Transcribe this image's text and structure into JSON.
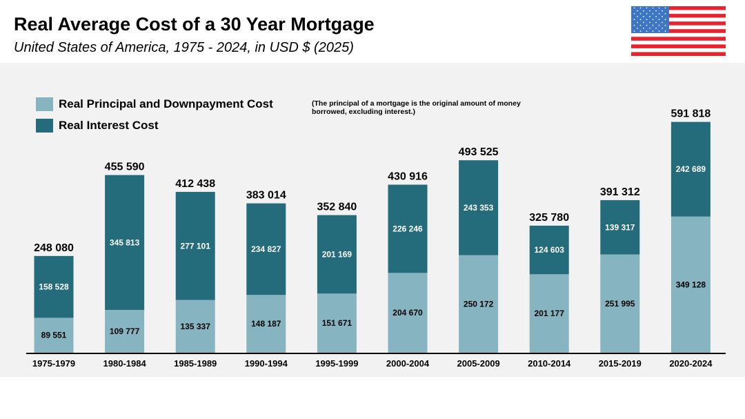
{
  "title": "Real Average Cost of a 30 Year Mortgage",
  "subtitle": "United States of America, 1975 - 2024, in USD $ (2025)",
  "note": "(The principal of a mortgage is the original amount of money borrowed, excluding interest.)",
  "colors": {
    "principal": "#86b5c1",
    "interest": "#246b7c",
    "flag_red": "#e8232f",
    "flag_blue": "#3c76c4"
  },
  "chart_data": {
    "type": "bar",
    "stacked": true,
    "title": "Real Average Cost of a 30 Year Mortgage",
    "categories": [
      "1975-1979",
      "1980-1984",
      "1985-1989",
      "1990-1994",
      "1995-1999",
      "2000-2004",
      "2005-2009",
      "2010-2014",
      "2015-2019",
      "2020-2024"
    ],
    "series": [
      {
        "name": "Real Principal and Downpayment Cost",
        "values": [
          89551,
          109777,
          135337,
          148187,
          151671,
          204670,
          250172,
          201177,
          251995,
          349128
        ],
        "labels": [
          "89 551",
          "109 777",
          "135 337",
          "148 187",
          "151 671",
          "204 670",
          "250 172",
          "201 177",
          "251 995",
          "349 128"
        ]
      },
      {
        "name": "Real Interest Cost",
        "values": [
          158528,
          345813,
          277101,
          234827,
          201169,
          226246,
          243353,
          124603,
          139317,
          242689
        ],
        "labels": [
          "158 528",
          "345 813",
          "277 101",
          "234 827",
          "201 169",
          "226 246",
          "243 353",
          "124 603",
          "139 317",
          "242 689"
        ]
      }
    ],
    "totals": [
      248080,
      455590,
      412438,
      383014,
      352840,
      430916,
      493525,
      325780,
      391312,
      591818
    ],
    "total_labels": [
      "248 080",
      "455 590",
      "412 438",
      "383 014",
      "352 840",
      "430 916",
      "493 525",
      "325 780",
      "391 312",
      "591 818"
    ],
    "ylim": [
      0,
      600000
    ],
    "legend": "top-left",
    "grid": false
  }
}
